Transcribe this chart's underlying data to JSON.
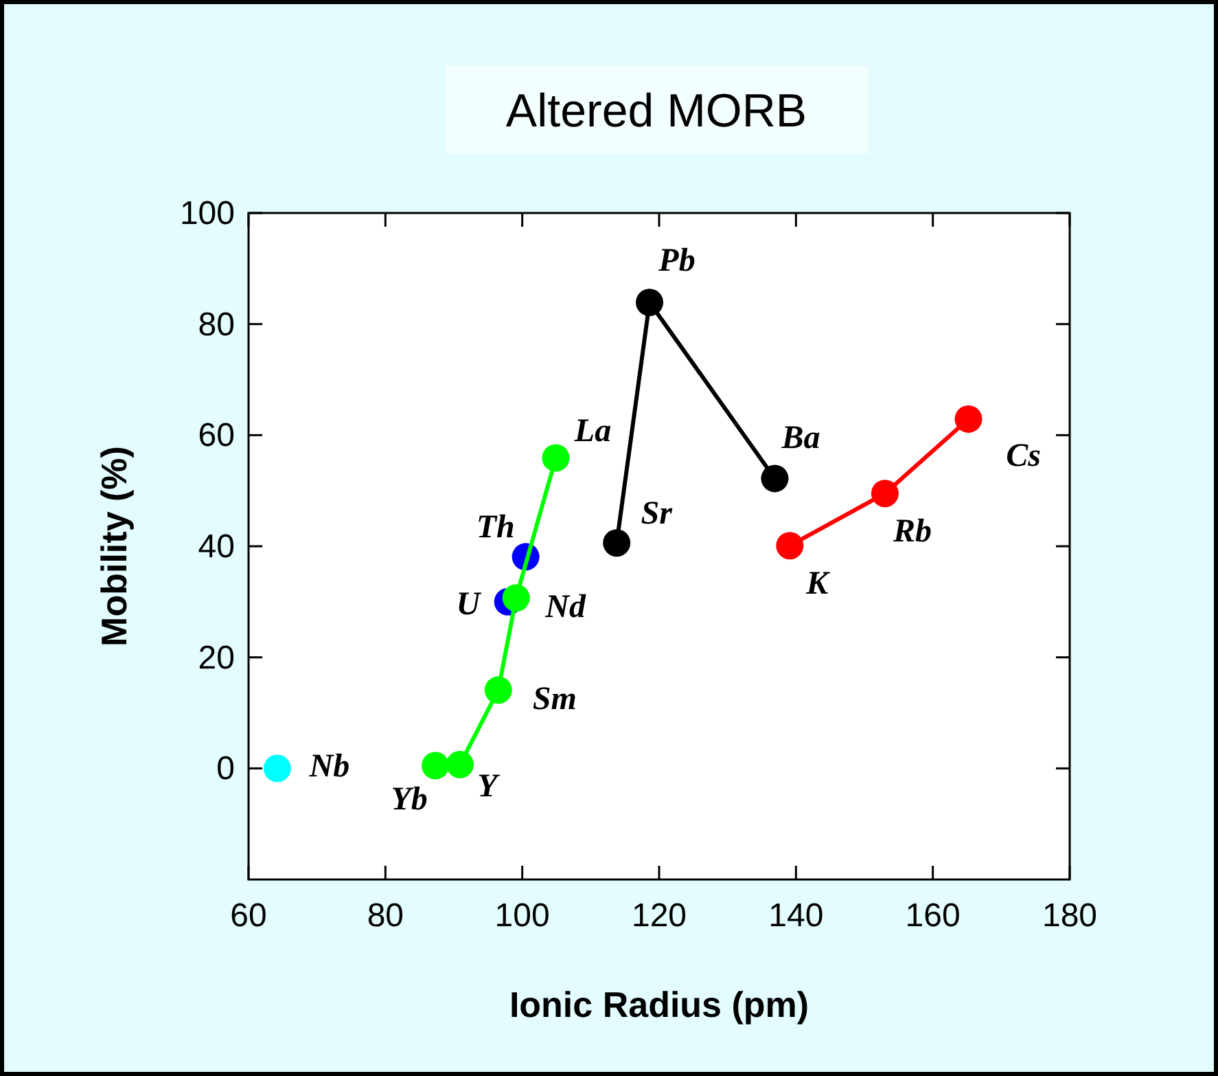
{
  "chart_data": {
    "type": "line",
    "title": "Altered MORB",
    "xlabel": "Ionic Radius (pm)",
    "ylabel": "Mobility (%)",
    "xlim": [
      60,
      180
    ],
    "xticks": [
      60,
      80,
      100,
      120,
      140,
      160,
      180
    ],
    "ylim": [
      -20,
      100
    ],
    "yticks": [
      0,
      20,
      40,
      60,
      80,
      100
    ],
    "grid": false,
    "marker": "circle",
    "line_style": "solid",
    "series": [
      {
        "type": "scatter",
        "color": "#00ffff",
        "x": [
          64.2
        ],
        "values": [
          0
        ]
      },
      {
        "type": "scatter",
        "color": "#0000ff",
        "x": [
          97.9,
          100.5
        ],
        "values": [
          30,
          38.1
        ]
      },
      {
        "color": "#00ff00",
        "x": [
          87.3,
          90.9,
          96.5,
          99.1,
          104.9
        ],
        "values": [
          0.5,
          0.7,
          14.1,
          30.7,
          55.9
        ]
      },
      {
        "color": "#000000",
        "x": [
          113.8,
          118.6,
          136.9
        ],
        "values": [
          40.6,
          83.9,
          52.2
        ]
      },
      {
        "color": "#ff0000",
        "x": [
          139.1,
          153,
          165.2
        ],
        "values": [
          40.1,
          49.5,
          62.9
        ]
      }
    ],
    "annotations": [
      {
        "text": "Nb",
        "x": 64.2,
        "y": 0
      },
      {
        "text": "Yb",
        "x": 87.3,
        "y": 0.5
      },
      {
        "text": "Y",
        "x": 90.9,
        "y": 0.7
      },
      {
        "text": "Sm",
        "x": 96.5,
        "y": 14.1
      },
      {
        "text": "Nd",
        "x": 99.1,
        "y": 30.7
      },
      {
        "text": "U",
        "x": 97.9,
        "y": 30
      },
      {
        "text": "Th",
        "x": 100.5,
        "y": 38.1
      },
      {
        "text": "La",
        "x": 104.9,
        "y": 55.9
      },
      {
        "text": "Sr",
        "x": 113.8,
        "y": 40.6
      },
      {
        "text": "Pb",
        "x": 118.6,
        "y": 83.9
      },
      {
        "text": "Ba",
        "x": 136.9,
        "y": 52.2
      },
      {
        "text": "K",
        "x": 139.1,
        "y": 40.1
      },
      {
        "text": "Rb",
        "x": 153,
        "y": 49.5
      },
      {
        "text": "Cs",
        "x": 165.2,
        "y": 62.9
      }
    ]
  }
}
